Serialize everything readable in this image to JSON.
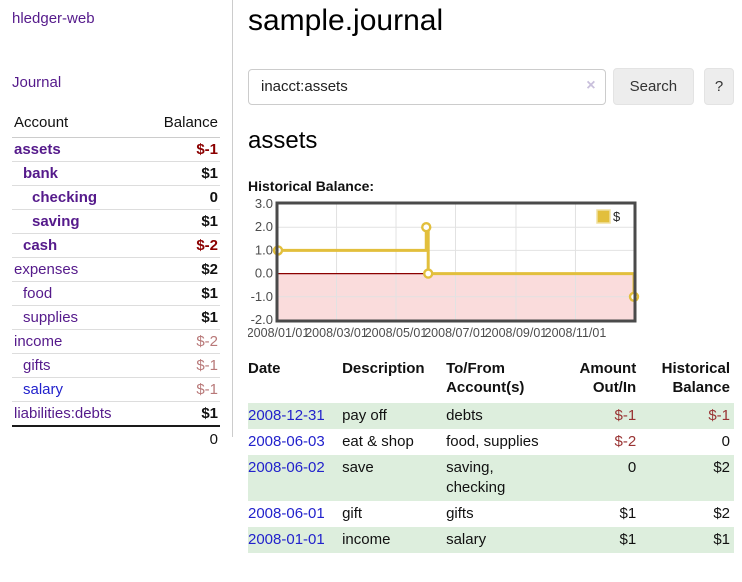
{
  "colors": {
    "accent_purple": "#551a8b",
    "link_blue": "#2222cc",
    "negative_strong": "#8b0000",
    "negative_soft": "#b87878",
    "table_negative": "#993333",
    "row_stripe_green": "#ddeedd"
  },
  "sidebar": {
    "app_title": "hledger-web",
    "journal_link": "Journal",
    "accounts_table": {
      "headers": {
        "account": "Account",
        "balance": "Balance"
      },
      "rows": [
        {
          "name": "assets",
          "balance": "$-1",
          "indent": 1,
          "bold": true,
          "negative": "strong"
        },
        {
          "name": "bank",
          "balance": "$1",
          "indent": 2,
          "bold": true
        },
        {
          "name": "checking",
          "balance": "0",
          "indent": 3,
          "bold": true
        },
        {
          "name": "saving",
          "balance": "$1",
          "indent": 3,
          "bold": true
        },
        {
          "name": "cash",
          "balance": "$-2",
          "indent": 2,
          "bold": true,
          "negative": "strong"
        },
        {
          "name": "expenses",
          "balance": "$2",
          "indent": 1
        },
        {
          "name": "food",
          "balance": "$1",
          "indent": 2
        },
        {
          "name": "supplies",
          "balance": "$1",
          "indent": 2
        },
        {
          "name": "income",
          "balance": "$-2",
          "indent": 1,
          "negative": "soft"
        },
        {
          "name": "gifts",
          "balance": "$-1",
          "indent": 2,
          "negative": "soft"
        },
        {
          "name": "salary",
          "balance": "$-1",
          "indent": 2,
          "negative": "soft",
          "link_color": "blue"
        },
        {
          "name": "liabilities:debts",
          "balance": "$1",
          "indent": 1
        }
      ],
      "total": "0"
    }
  },
  "header": {
    "title": "sample.journal"
  },
  "search": {
    "value": "inacct:assets",
    "clear_icon": "×",
    "button_label": "Search",
    "help_label": "?"
  },
  "register": {
    "heading": "assets",
    "chart_label": "Historical Balance:",
    "table": {
      "headers": {
        "date": "Date",
        "sort_icon": "∧",
        "description": "Description",
        "accounts": "To/From Account(s)",
        "amount": "Amount Out/In",
        "balance": "Historical Balance"
      },
      "rows": [
        {
          "date": "2008-12-31",
          "description": "pay off",
          "accounts": "debts",
          "amount": "$-1",
          "balance": "$-1",
          "amount_negative": true,
          "balance_negative": true,
          "shaded": true
        },
        {
          "date": "2008-06-03",
          "description": "eat & shop",
          "accounts": "food, supplies",
          "amount": "$-2",
          "balance": "0",
          "amount_negative": true,
          "shaded": false
        },
        {
          "date": "2008-06-02",
          "description": "save",
          "accounts": "saving, checking",
          "amount": "0",
          "balance": "$2",
          "shaded": true
        },
        {
          "date": "2008-06-01",
          "description": "gift",
          "accounts": "gifts",
          "amount": "$1",
          "balance": "$2",
          "shaded": false
        },
        {
          "date": "2008-01-01",
          "description": "income",
          "accounts": "salary",
          "amount": "$1",
          "balance": "$1",
          "shaded": true
        }
      ]
    }
  },
  "chart_data": {
    "type": "line",
    "subtype": "step-after",
    "title": "Historical Balance",
    "series": [
      {
        "name": "$",
        "points": [
          [
            "2008-01-01",
            1
          ],
          [
            "2008-06-01",
            2
          ],
          [
            "2008-06-03",
            0
          ],
          [
            "2008-12-31",
            -1
          ]
        ]
      }
    ],
    "point_days": [
      0,
      152,
      154,
      365
    ],
    "domain_days": 365,
    "ylim": [
      -2,
      3
    ],
    "y_ticks": [
      "3.0",
      "2.0",
      "1.0",
      "0.0",
      "-1.0",
      "-2.0"
    ],
    "y_tick_values": [
      3,
      2,
      1,
      0,
      -1,
      -2
    ],
    "x_ticks": [
      {
        "label": "2008/01/01",
        "day": 0
      },
      {
        "label": "2008/03/01",
        "day": 60
      },
      {
        "label": "2008/05/01",
        "day": 121
      },
      {
        "label": "2008/07/01",
        "day": 182
      },
      {
        "label": "2008/09/01",
        "day": 244
      },
      {
        "label": "2008/11/01",
        "day": 305
      }
    ],
    "legend": {
      "label": "$",
      "position": "top-right"
    },
    "grid": true,
    "colors": {
      "line": "#e2bf3c",
      "marker_fill": "#ffffff",
      "negative_fill": "#fadcdc",
      "zero_line": "#8b0000",
      "grid": "#e2e2e2",
      "border": "#4a4a4a",
      "tick_text": "#4d4d4d"
    }
  }
}
